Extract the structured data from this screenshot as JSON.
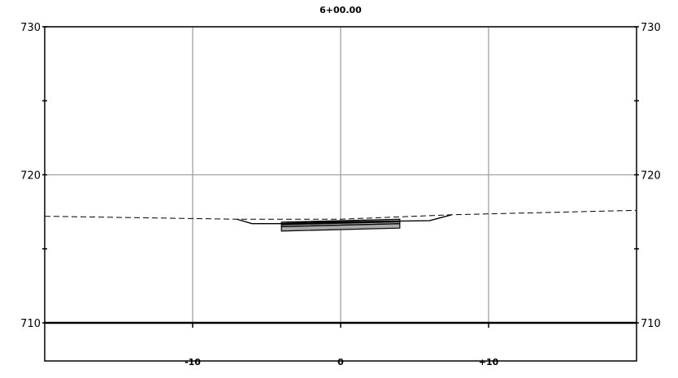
{
  "chart_data": {
    "type": "cross-section",
    "title": "6+00.00",
    "xlim": [
      -20,
      20
    ],
    "ylim": [
      710,
      730
    ],
    "y_ticks": [
      "710",
      "720",
      "730"
    ],
    "x_ticks": [
      "-10",
      "0",
      "+10"
    ],
    "grid": true,
    "existing_ground": {
      "style": "dashed",
      "points": [
        [
          -20,
          717.2
        ],
        [
          -7,
          717.0
        ],
        [
          0,
          717.0
        ],
        [
          7.5,
          717.3
        ],
        [
          20,
          717.6
        ]
      ]
    },
    "proposed_grade": {
      "style": "solid",
      "points": [
        [
          -7,
          717.0
        ],
        [
          -6,
          716.7
        ],
        [
          -4,
          716.7
        ],
        [
          -2,
          716.8
        ],
        [
          6,
          716.9
        ],
        [
          7.5,
          717.3
        ]
      ]
    },
    "pavement": {
      "x_range": [
        -4,
        4
      ],
      "top_left": 716.8,
      "top_right": 717.0,
      "bottom_left": 716.2,
      "bottom_right": 716.4,
      "mid_left": 716.5,
      "mid_right": 716.7,
      "fill": "#aaaaaa"
    },
    "colors": {
      "grid": "#a0a0a0",
      "frame": "#000000"
    }
  }
}
